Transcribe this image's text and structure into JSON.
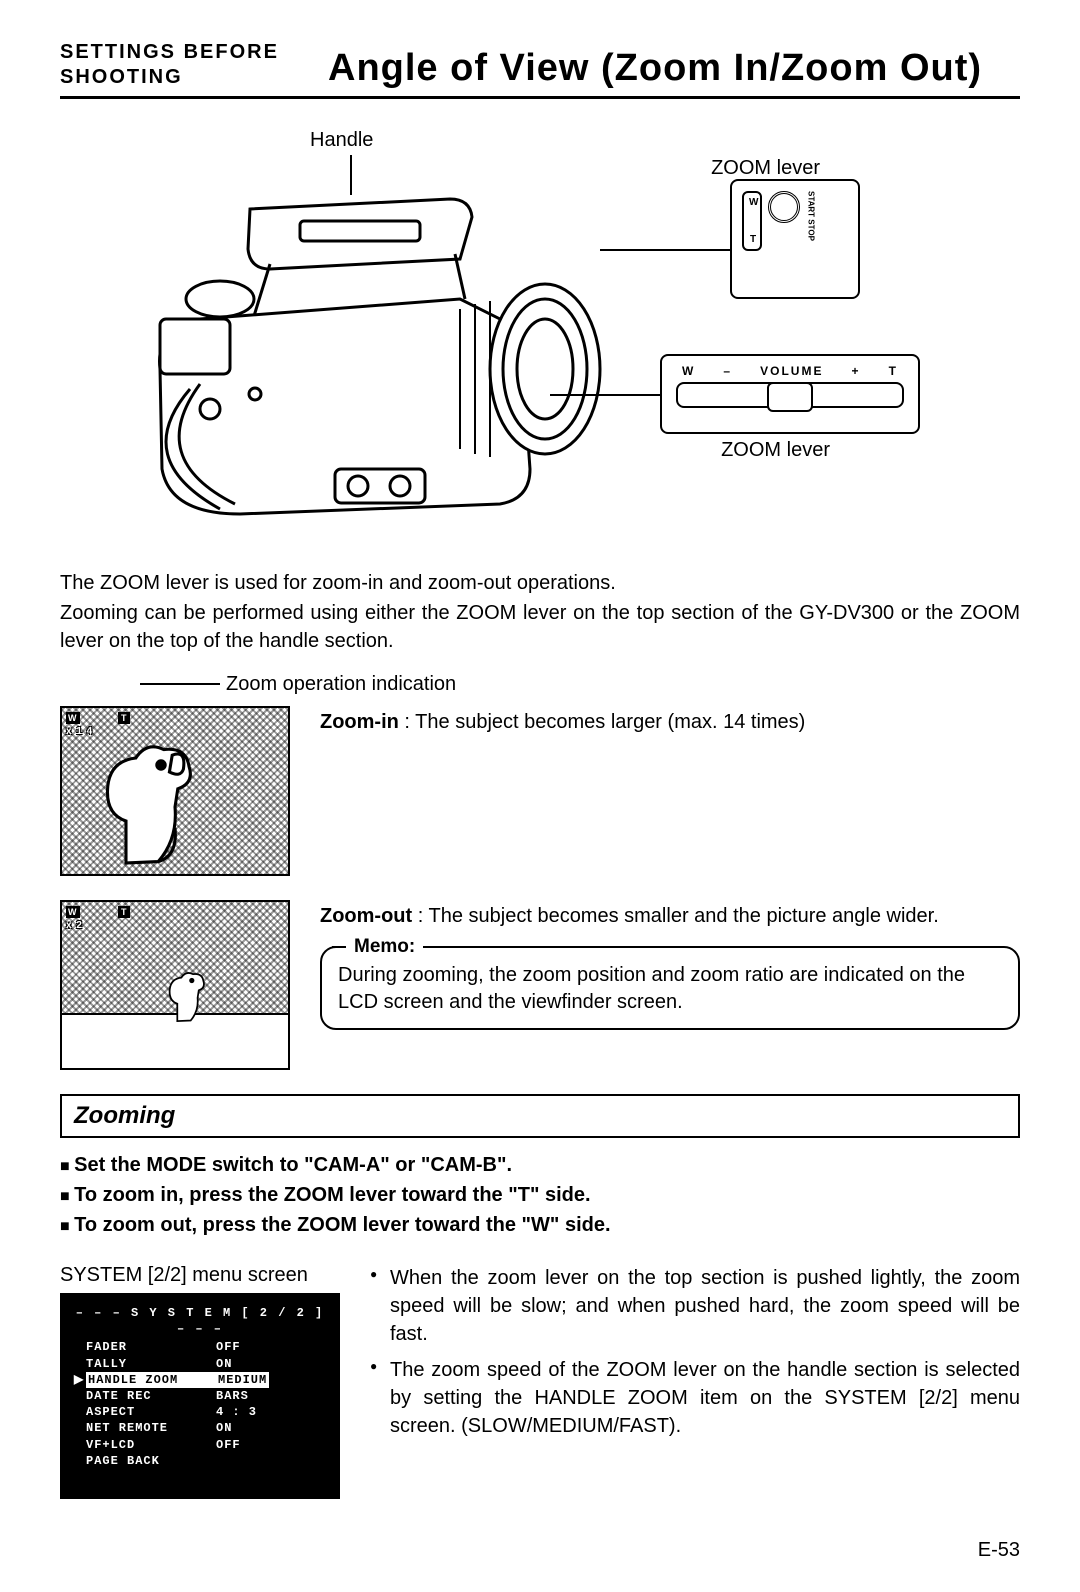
{
  "header": {
    "section_line1": "SETTINGS BEFORE",
    "section_line2": "SHOOTING",
    "title": "Angle of View (Zoom In/Zoom Out)"
  },
  "hero": {
    "handle_label": "Handle",
    "zoom_lever_label": "ZOOM lever",
    "callout_top": {
      "w": "W",
      "t": "T",
      "start_stop": "START\nSTOP"
    },
    "callout_bot": {
      "w": "W",
      "minus": "–",
      "volume": "VOLUME",
      "plus": "+",
      "t": "T"
    }
  },
  "intro": {
    "p1": "The ZOOM lever is used for zoom-in and zoom-out operations.",
    "p2": "Zooming can be performed using either the ZOOM lever on the top section of the GY-DV300 or the ZOOM lever on the top of the handle section."
  },
  "indicator_label": "Zoom operation indication",
  "zoom_in": {
    "osd_w": "W",
    "osd_t": "T",
    "osd_ratio": "x 1 4",
    "label": "Zoom-in",
    "text": " : The subject becomes larger (max. 14 times)"
  },
  "zoom_out": {
    "osd_w": "W",
    "osd_t": "T",
    "osd_ratio": "x   2",
    "label": "Zoom-out",
    "text": " : The subject becomes smaller and the picture angle wider."
  },
  "memo": {
    "title": "Memo:",
    "text": "During zooming, the zoom position and zoom ratio are indicated on the LCD screen and the viewfinder screen."
  },
  "zooming": {
    "heading": "Zooming",
    "b1": "Set the MODE switch to \"CAM-A\" or \"CAM-B\".",
    "b2": "To zoom in, press the ZOOM lever toward the \"T\" side.",
    "b3": "To zoom out, press the ZOOM lever toward the \"W\" side."
  },
  "menu": {
    "caption": "SYSTEM [2/2] menu screen",
    "title": "– – –   S Y S T E M [ 2 / 2 ]   – – –",
    "rows": [
      {
        "k": "FADER",
        "v": "OFF",
        "sel": false
      },
      {
        "k": "TALLY",
        "v": "ON",
        "sel": false
      },
      {
        "k": "HANDLE  ZOOM",
        "v": "MEDIUM",
        "sel": true
      },
      {
        "k": "DATE  REC",
        "v": "BARS",
        "sel": false
      },
      {
        "k": "ASPECT",
        "v": "4 : 3",
        "sel": false
      },
      {
        "k": "NET  REMOTE",
        "v": "ON",
        "sel": false
      },
      {
        "k": "VF+LCD",
        "v": "OFF",
        "sel": false
      },
      {
        "k": "PAGE  BACK",
        "v": "",
        "sel": false
      }
    ]
  },
  "notes": {
    "n1": "When the zoom lever on the top section is pushed lightly, the zoom speed will be slow; and when pushed hard, the zoom speed will be fast.",
    "n2": "The zoom speed of the ZOOM lever on the handle section is selected by setting the HANDLE ZOOM item on the SYSTEM [2/2] menu screen. (SLOW/MEDIUM/FAST)."
  },
  "page_number": "E-53"
}
